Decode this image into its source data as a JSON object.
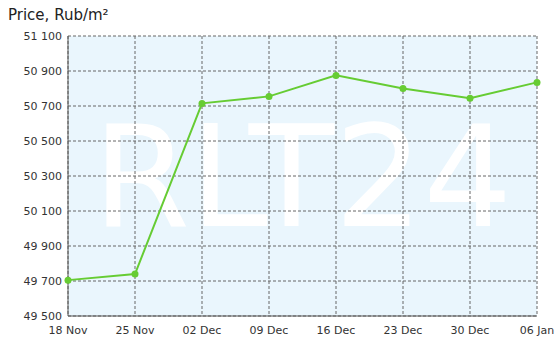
{
  "chart_data": {
    "type": "line",
    "title": "Price, Rub/m²",
    "annotations": [
      "RLT24"
    ],
    "categories": [
      "18 Nov",
      "25 Nov",
      "02 Dec",
      "09 Dec",
      "16 Dec",
      "23 Dec",
      "30 Dec",
      "06 Jan"
    ],
    "values": [
      49705,
      49740,
      50715,
      50755,
      50875,
      50800,
      50745,
      50835
    ],
    "color": "#66cc33",
    "marker": "circle",
    "ylim": [
      49500,
      51100
    ],
    "yticks": [
      {
        "value": 49500,
        "label": "49 500"
      },
      {
        "value": 49700,
        "label": "49 700"
      },
      {
        "value": 49900,
        "label": "49 900"
      },
      {
        "value": 50100,
        "label": "50 100"
      },
      {
        "value": 50300,
        "label": "50 300"
      },
      {
        "value": 50500,
        "label": "50 500"
      },
      {
        "value": 50700,
        "label": "50 700"
      },
      {
        "value": 50900,
        "label": "50 900"
      },
      {
        "value": 51100,
        "label": "51 100"
      }
    ],
    "grid": true
  }
}
